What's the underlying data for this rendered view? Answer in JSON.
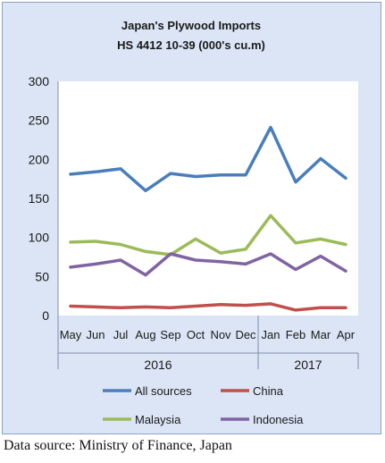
{
  "chart_data": {
    "type": "line",
    "title": "Japan's Plywood Imports",
    "subtitle": "HS 4412 10-39  (000's cu.m)",
    "categories": [
      "May",
      "Jun",
      "Jul",
      "Aug",
      "Sep",
      "Oct",
      "Nov",
      "Dec",
      "Jan",
      "Feb",
      "Mar",
      "Apr"
    ],
    "year_groups": [
      {
        "label": "2016",
        "count": 8
      },
      {
        "label": "2017",
        "count": 4
      }
    ],
    "yticks": [
      "0",
      "50",
      "100",
      "150",
      "200",
      "250",
      "300"
    ],
    "ylim": [
      0,
      300
    ],
    "grid": false,
    "legend_position": "bottom",
    "series": [
      {
        "name": "All sources",
        "color": "#4a7ebb",
        "values": [
          181,
          184,
          188,
          160,
          182,
          178,
          180,
          180,
          241,
          171,
          201,
          176
        ]
      },
      {
        "name": "China",
        "color": "#c0504d",
        "values": [
          12,
          11,
          10,
          11,
          10,
          12,
          14,
          13,
          15,
          7,
          10,
          10
        ]
      },
      {
        "name": "Malaysia",
        "color": "#9bbb59",
        "values": [
          94,
          95,
          91,
          82,
          78,
          98,
          80,
          85,
          128,
          93,
          98,
          91
        ]
      },
      {
        "name": "Indonesia",
        "color": "#8064a2",
        "values": [
          62,
          66,
          71,
          52,
          79,
          71,
          69,
          66,
          79,
          59,
          76,
          57
        ]
      }
    ]
  },
  "source_note": "Data source: Ministry of Finance, Japan"
}
